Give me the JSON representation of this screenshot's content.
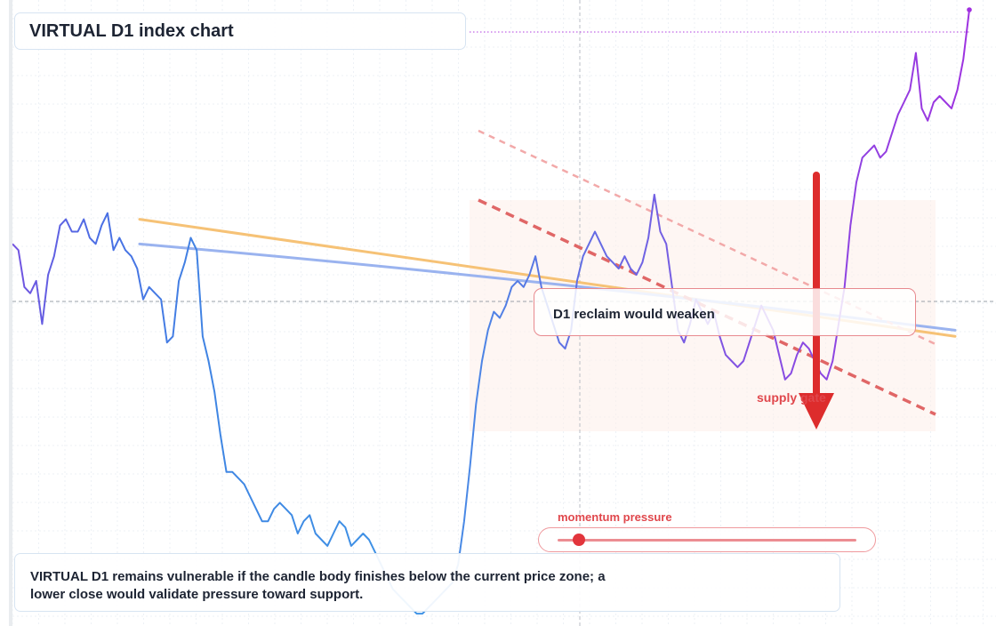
{
  "title": "VIRTUAL D1 index chart",
  "callout": "D1 reclaim would weaken",
  "zone_label": "supply gate",
  "momentum": {
    "label": "momentum pressure",
    "level": 0.07
  },
  "summary": "VIRTUAL D1 remains vulnerable if the candle body finishes below the current price zone; a lower close would validate pressure toward support.",
  "colors": {
    "price_blue": "#3f86e3",
    "price_purple": "#a12fe0",
    "ma_orange": "#f6c276",
    "ma_blue": "#9ab3ef",
    "trend_red": "#e06666",
    "arrow_red": "#dd2c2c",
    "accent_red": "#e0474c"
  },
  "chart_data": {
    "type": "line",
    "title": "VIRTUAL D1 index chart",
    "xlabel": "",
    "ylabel": "",
    "ylim": [
      0,
      100
    ],
    "grid": true,
    "series": [
      {
        "role": "price",
        "values": [
          62,
          61,
          55,
          54,
          56,
          49,
          57,
          60,
          65,
          66,
          64,
          64,
          66,
          63,
          62,
          65,
          67,
          61,
          63,
          61,
          60,
          58,
          53,
          55,
          54,
          53,
          46,
          47,
          56,
          59,
          63,
          61,
          47,
          43,
          38,
          31,
          25,
          25,
          24,
          23,
          21,
          19,
          17,
          17,
          19,
          20,
          19,
          18,
          15,
          17,
          18,
          15,
          14,
          13,
          15,
          17,
          16,
          13,
          14,
          15,
          14,
          12,
          10,
          8,
          6,
          5,
          4,
          3,
          2,
          2,
          3,
          4,
          5,
          6,
          7,
          10,
          17,
          26,
          36,
          43,
          48,
          51,
          50,
          52,
          55,
          56,
          55,
          57,
          60,
          55,
          52,
          49,
          46,
          45,
          48,
          56,
          60,
          62,
          64,
          62,
          60,
          59,
          58,
          60,
          58,
          57,
          59,
          63,
          70,
          64,
          62,
          55,
          48,
          46,
          49,
          53,
          51,
          49,
          51,
          47,
          44,
          43,
          42,
          43,
          46,
          49,
          52,
          50,
          48,
          44,
          40,
          41,
          44,
          46,
          45,
          43,
          41,
          40,
          43,
          49,
          55,
          65,
          72,
          76,
          77,
          78,
          76,
          77,
          80,
          83,
          85,
          87,
          93,
          84,
          82,
          85,
          86,
          85,
          84,
          87,
          92,
          100
        ]
      },
      {
        "role": "moving-average-fast",
        "values": [
          62,
          48
        ]
      },
      {
        "role": "moving-average-slow",
        "values": [
          66,
          47
        ]
      }
    ]
  }
}
